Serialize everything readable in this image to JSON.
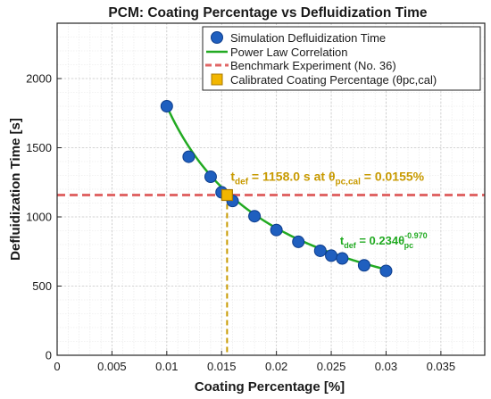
{
  "chart_data": {
    "type": "scatter",
    "title": "PCM: Coating Percentage vs Defluidization Time",
    "xlabel": "Coating Percentage [%]",
    "ylabel": "Defluidization Time [s]",
    "xlim": [
      0,
      0.039
    ],
    "ylim": [
      0,
      2400
    ],
    "x_ticks": [
      0,
      0.005,
      0.01,
      0.015,
      0.02,
      0.025,
      0.03,
      0.035
    ],
    "x_tick_labels": [
      "0",
      "0.005",
      "0.01",
      "0.015",
      "0.02",
      "0.025",
      "0.03",
      "0.035"
    ],
    "y_ticks": [
      0,
      500,
      1000,
      1500,
      2000
    ],
    "y_tick_labels": [
      "0",
      "500",
      "1000",
      "1500",
      "2000"
    ],
    "grid": true,
    "legend_position": "top-right",
    "series": [
      {
        "name": "Simulation Defluidization Time",
        "kind": "scatter",
        "color": "#1f5fbf",
        "x": [
          0.01,
          0.012,
          0.014,
          0.015,
          0.016,
          0.018,
          0.02,
          0.022,
          0.024,
          0.025,
          0.026,
          0.028,
          0.03
        ],
        "y": [
          1800,
          1435,
          1290,
          1178,
          1115,
          1005,
          905,
          820,
          755,
          720,
          700,
          650,
          610
        ]
      },
      {
        "name": "Power Law Correlation",
        "kind": "line",
        "color": "#22aa22",
        "coefficient": 0.234,
        "exponent": -0.97,
        "x_range": [
          0.01,
          0.03
        ]
      },
      {
        "name": "Benchmark Experiment (No. 36)",
        "kind": "hline",
        "color": "#e06666",
        "y": 1158
      },
      {
        "name": "Calibrated Coating Percentage (θpc,cal)",
        "kind": "marker",
        "color": "#f2b600",
        "x": 0.0155,
        "y": 1158
      }
    ],
    "legend": [
      "Simulation Defluidization Time",
      "Power Law Correlation",
      "Benchmark Experiment (No. 36)",
      "Calibrated Coating Percentage (θpc,cal)"
    ],
    "annotations": [
      {
        "id": "calibration",
        "color": "#c89a00",
        "text_main": "t",
        "text_sub": "def",
        "text_rest": " = 1158.0 s at θ",
        "text_sub2": "pc,cal",
        "text_end": " = 0.0155%",
        "x": 0.0155,
        "y": 1158
      },
      {
        "id": "fit-equation",
        "color": "#22aa22",
        "text_main": "t",
        "text_sub": "def",
        "text_rest": " = 0.234θ",
        "text_sub2": "pc",
        "text_sup": "-0.970"
      }
    ]
  }
}
